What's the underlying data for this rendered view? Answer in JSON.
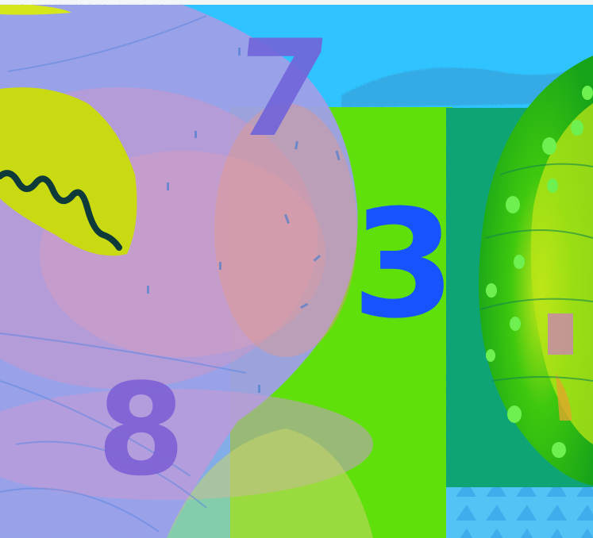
{
  "numbers": {
    "seven": "7",
    "three": "3",
    "eight": "8"
  },
  "colors": {
    "sky": "#2fc3ff",
    "green": "#5fe00a",
    "teal": "#0b9a6c",
    "lilac": "#9a9ee6",
    "pink": "#d596c6",
    "yellow": "#c9da12",
    "numeral_seven": "#7266da",
    "numeral_three": "#1753ff",
    "numeral_eight": "#7d5fd6"
  }
}
